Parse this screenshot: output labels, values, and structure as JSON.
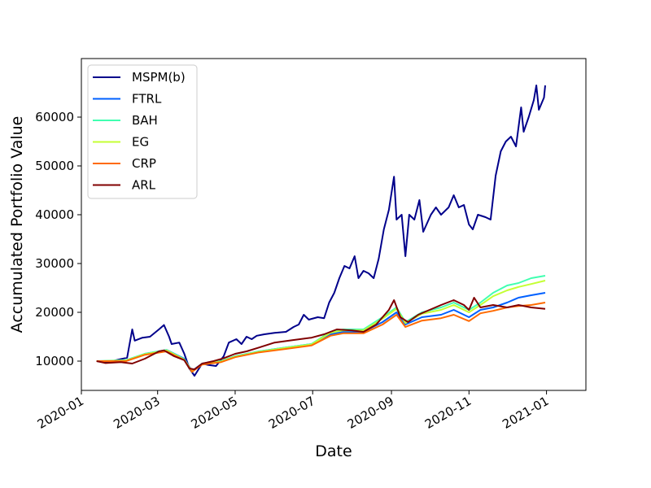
{
  "chart_data": {
    "type": "line",
    "xlabel": "Date",
    "ylabel": "Accumulated Portfolio Value",
    "xlim": [
      "2020-01-01",
      "2021-02-01"
    ],
    "ylim": [
      4000,
      72000
    ],
    "x_ticks": [
      "2020-01-01",
      "2020-03-01",
      "2020-05-01",
      "2020-07-01",
      "2020-09-01",
      "2020-11-01",
      "2021-01-01"
    ],
    "x_tick_labels": [
      "2020-01",
      "2020-03",
      "2020-05",
      "2020-07",
      "2020-09",
      "2020-11",
      "2021-01"
    ],
    "y_ticks": [
      10000,
      20000,
      30000,
      40000,
      50000,
      60000
    ],
    "y_tick_labels": [
      "10000",
      "20000",
      "30000",
      "40000",
      "50000",
      "60000"
    ],
    "grid": false,
    "legend_position": "top-left",
    "series": [
      {
        "name": "MSPM(b)",
        "color": "#00008b",
        "points": [
          [
            "2020-01-13",
            10000
          ],
          [
            "2020-01-22",
            9800
          ],
          [
            "2020-01-30",
            10300
          ],
          [
            "2020-02-06",
            10700
          ],
          [
            "2020-02-10",
            16500
          ],
          [
            "2020-02-12",
            14200
          ],
          [
            "2020-02-18",
            14800
          ],
          [
            "2020-02-24",
            15000
          ],
          [
            "2020-03-02",
            16500
          ],
          [
            "2020-03-06",
            17400
          ],
          [
            "2020-03-10",
            15000
          ],
          [
            "2020-03-12",
            13500
          ],
          [
            "2020-03-18",
            13800
          ],
          [
            "2020-03-22",
            11500
          ],
          [
            "2020-03-26",
            8500
          ],
          [
            "2020-03-30",
            7000
          ],
          [
            "2020-04-05",
            9500
          ],
          [
            "2020-04-10",
            9200
          ],
          [
            "2020-04-16",
            9000
          ],
          [
            "2020-04-22",
            11000
          ],
          [
            "2020-04-26",
            13800
          ],
          [
            "2020-05-02",
            14500
          ],
          [
            "2020-05-06",
            13500
          ],
          [
            "2020-05-10",
            15000
          ],
          [
            "2020-05-14",
            14500
          ],
          [
            "2020-05-18",
            15200
          ],
          [
            "2020-05-24",
            15500
          ],
          [
            "2020-06-01",
            15800
          ],
          [
            "2020-06-10",
            16000
          ],
          [
            "2020-06-16",
            17000
          ],
          [
            "2020-06-20",
            17500
          ],
          [
            "2020-06-24",
            19500
          ],
          [
            "2020-06-28",
            18500
          ],
          [
            "2020-07-05",
            19000
          ],
          [
            "2020-07-10",
            18800
          ],
          [
            "2020-07-14",
            22000
          ],
          [
            "2020-07-18",
            24000
          ],
          [
            "2020-07-22",
            27000
          ],
          [
            "2020-07-26",
            29500
          ],
          [
            "2020-07-30",
            29000
          ],
          [
            "2020-08-03",
            31500
          ],
          [
            "2020-08-06",
            27000
          ],
          [
            "2020-08-10",
            28500
          ],
          [
            "2020-08-14",
            28000
          ],
          [
            "2020-08-18",
            27000
          ],
          [
            "2020-08-22",
            31000
          ],
          [
            "2020-08-26",
            37000
          ],
          [
            "2020-08-30",
            41000
          ],
          [
            "2020-09-03",
            47800
          ],
          [
            "2020-09-05",
            39000
          ],
          [
            "2020-09-09",
            40000
          ],
          [
            "2020-09-12",
            31500
          ],
          [
            "2020-09-15",
            40000
          ],
          [
            "2020-09-19",
            39000
          ],
          [
            "2020-09-23",
            43000
          ],
          [
            "2020-09-26",
            36500
          ],
          [
            "2020-10-02",
            40000
          ],
          [
            "2020-10-06",
            41500
          ],
          [
            "2020-10-10",
            40000
          ],
          [
            "2020-10-16",
            41500
          ],
          [
            "2020-10-20",
            44000
          ],
          [
            "2020-10-24",
            41500
          ],
          [
            "2020-10-28",
            42000
          ],
          [
            "2020-11-01",
            38000
          ],
          [
            "2020-11-04",
            37000
          ],
          [
            "2020-11-08",
            40000
          ],
          [
            "2020-11-14",
            39500
          ],
          [
            "2020-11-18",
            39000
          ],
          [
            "2020-11-22",
            48000
          ],
          [
            "2020-11-26",
            53000
          ],
          [
            "2020-11-30",
            55000
          ],
          [
            "2020-12-04",
            56000
          ],
          [
            "2020-12-08",
            54000
          ],
          [
            "2020-12-12",
            62000
          ],
          [
            "2020-12-14",
            57000
          ],
          [
            "2020-12-18",
            60000
          ],
          [
            "2020-12-22",
            63500
          ],
          [
            "2020-12-24",
            66500
          ],
          [
            "2020-12-26",
            61500
          ],
          [
            "2020-12-30",
            64000
          ],
          [
            "2020-12-31",
            66500
          ]
        ]
      },
      {
        "name": "FTRL",
        "color": "#0060ff",
        "points": [
          [
            "2020-01-13",
            10000
          ],
          [
            "2020-02-05",
            10000
          ],
          [
            "2020-02-20",
            11500
          ],
          [
            "2020-03-08",
            12300
          ],
          [
            "2020-03-22",
            10500
          ],
          [
            "2020-03-28",
            8000
          ],
          [
            "2020-04-05",
            9500
          ],
          [
            "2020-04-20",
            10000
          ],
          [
            "2020-05-01",
            11000
          ],
          [
            "2020-05-20",
            12000
          ],
          [
            "2020-06-10",
            12800
          ],
          [
            "2020-06-30",
            13500
          ],
          [
            "2020-07-15",
            15500
          ],
          [
            "2020-07-25",
            16000
          ],
          [
            "2020-08-10",
            16000
          ],
          [
            "2020-08-25",
            18000
          ],
          [
            "2020-09-05",
            20000
          ],
          [
            "2020-09-12",
            17500
          ],
          [
            "2020-09-25",
            19000
          ],
          [
            "2020-10-10",
            19500
          ],
          [
            "2020-10-20",
            20500
          ],
          [
            "2020-11-01",
            19000
          ],
          [
            "2020-11-10",
            20500
          ],
          [
            "2020-11-20",
            21000
          ],
          [
            "2020-12-01",
            22000
          ],
          [
            "2020-12-10",
            23000
          ],
          [
            "2020-12-20",
            23500
          ],
          [
            "2020-12-31",
            24000
          ]
        ]
      },
      {
        "name": "BAH",
        "color": "#40ffb0",
        "points": [
          [
            "2020-01-13",
            10000
          ],
          [
            "2020-02-05",
            10200
          ],
          [
            "2020-02-20",
            11500
          ],
          [
            "2020-03-08",
            12300
          ],
          [
            "2020-03-22",
            10400
          ],
          [
            "2020-03-28",
            7800
          ],
          [
            "2020-04-05",
            9500
          ],
          [
            "2020-04-20",
            10000
          ],
          [
            "2020-05-01",
            11000
          ],
          [
            "2020-05-20",
            12000
          ],
          [
            "2020-06-10",
            12800
          ],
          [
            "2020-06-30",
            13500
          ],
          [
            "2020-07-15",
            16000
          ],
          [
            "2020-07-25",
            16500
          ],
          [
            "2020-08-10",
            16500
          ],
          [
            "2020-08-25",
            19000
          ],
          [
            "2020-09-05",
            21000
          ],
          [
            "2020-09-12",
            18000
          ],
          [
            "2020-09-25",
            20000
          ],
          [
            "2020-10-10",
            21000
          ],
          [
            "2020-10-20",
            22000
          ],
          [
            "2020-11-01",
            20500
          ],
          [
            "2020-11-10",
            22000
          ],
          [
            "2020-11-20",
            24000
          ],
          [
            "2020-12-01",
            25500
          ],
          [
            "2020-12-10",
            26000
          ],
          [
            "2020-12-20",
            27000
          ],
          [
            "2020-12-31",
            27500
          ]
        ]
      },
      {
        "name": "EG",
        "color": "#c4ff34",
        "points": [
          [
            "2020-01-13",
            10000
          ],
          [
            "2020-02-05",
            10100
          ],
          [
            "2020-02-20",
            11400
          ],
          [
            "2020-03-08",
            12200
          ],
          [
            "2020-03-22",
            10300
          ],
          [
            "2020-03-28",
            7900
          ],
          [
            "2020-04-05",
            9400
          ],
          [
            "2020-04-20",
            9900
          ],
          [
            "2020-05-01",
            10900
          ],
          [
            "2020-05-20",
            11900
          ],
          [
            "2020-06-10",
            12700
          ],
          [
            "2020-06-30",
            13400
          ],
          [
            "2020-07-15",
            15800
          ],
          [
            "2020-07-25",
            16300
          ],
          [
            "2020-08-10",
            16300
          ],
          [
            "2020-08-25",
            18700
          ],
          [
            "2020-09-05",
            20700
          ],
          [
            "2020-09-12",
            17800
          ],
          [
            "2020-09-25",
            19700
          ],
          [
            "2020-10-10",
            20500
          ],
          [
            "2020-10-20",
            21500
          ],
          [
            "2020-11-01",
            20000
          ],
          [
            "2020-11-10",
            21500
          ],
          [
            "2020-11-20",
            23300
          ],
          [
            "2020-12-01",
            24500
          ],
          [
            "2020-12-10",
            25200
          ],
          [
            "2020-12-20",
            25800
          ],
          [
            "2020-12-31",
            26500
          ]
        ]
      },
      {
        "name": "CRP",
        "color": "#ff6a00",
        "points": [
          [
            "2020-01-13",
            10000
          ],
          [
            "2020-02-05",
            10000
          ],
          [
            "2020-02-20",
            11300
          ],
          [
            "2020-03-08",
            12000
          ],
          [
            "2020-03-22",
            10200
          ],
          [
            "2020-03-28",
            7800
          ],
          [
            "2020-04-05",
            9300
          ],
          [
            "2020-04-20",
            9800
          ],
          [
            "2020-05-01",
            10800
          ],
          [
            "2020-05-20",
            11800
          ],
          [
            "2020-06-10",
            12500
          ],
          [
            "2020-06-30",
            13200
          ],
          [
            "2020-07-15",
            15200
          ],
          [
            "2020-07-25",
            15700
          ],
          [
            "2020-08-10",
            15700
          ],
          [
            "2020-08-25",
            17500
          ],
          [
            "2020-09-05",
            19500
          ],
          [
            "2020-09-12",
            17000
          ],
          [
            "2020-09-25",
            18300
          ],
          [
            "2020-10-10",
            18800
          ],
          [
            "2020-10-20",
            19500
          ],
          [
            "2020-11-01",
            18200
          ],
          [
            "2020-11-10",
            19800
          ],
          [
            "2020-11-20",
            20300
          ],
          [
            "2020-12-01",
            21000
          ],
          [
            "2020-12-10",
            21300
          ],
          [
            "2020-12-20",
            21500
          ],
          [
            "2020-12-31",
            22000
          ]
        ]
      },
      {
        "name": "ARL",
        "color": "#800000",
        "points": [
          [
            "2020-01-13",
            10000
          ],
          [
            "2020-01-20",
            9600
          ],
          [
            "2020-02-01",
            9800
          ],
          [
            "2020-02-10",
            9500
          ],
          [
            "2020-02-20",
            10500
          ],
          [
            "2020-03-02",
            12000
          ],
          [
            "2020-03-06",
            12200
          ],
          [
            "2020-03-14",
            11000
          ],
          [
            "2020-03-22",
            10200
          ],
          [
            "2020-03-26",
            8500
          ],
          [
            "2020-03-30",
            8300
          ],
          [
            "2020-04-05",
            9500
          ],
          [
            "2020-04-14",
            10000
          ],
          [
            "2020-04-22",
            10600
          ],
          [
            "2020-05-01",
            11500
          ],
          [
            "2020-05-10",
            12000
          ],
          [
            "2020-05-20",
            12800
          ],
          [
            "2020-06-01",
            13800
          ],
          [
            "2020-06-15",
            14300
          ],
          [
            "2020-06-30",
            14800
          ],
          [
            "2020-07-10",
            15500
          ],
          [
            "2020-07-20",
            16500
          ],
          [
            "2020-08-01",
            16300
          ],
          [
            "2020-08-10",
            16000
          ],
          [
            "2020-08-20",
            17500
          ],
          [
            "2020-08-30",
            20500
          ],
          [
            "2020-09-03",
            22500
          ],
          [
            "2020-09-08",
            19000
          ],
          [
            "2020-09-14",
            18000
          ],
          [
            "2020-09-22",
            19500
          ],
          [
            "2020-10-01",
            20500
          ],
          [
            "2020-10-10",
            21500
          ],
          [
            "2020-10-20",
            22500
          ],
          [
            "2020-10-28",
            21500
          ],
          [
            "2020-11-01",
            20500
          ],
          [
            "2020-11-05",
            23000
          ],
          [
            "2020-11-10",
            21000
          ],
          [
            "2020-11-20",
            21500
          ],
          [
            "2020-12-01",
            21000
          ],
          [
            "2020-12-10",
            21500
          ],
          [
            "2020-12-20",
            21000
          ],
          [
            "2020-12-31",
            20700
          ]
        ]
      }
    ]
  }
}
